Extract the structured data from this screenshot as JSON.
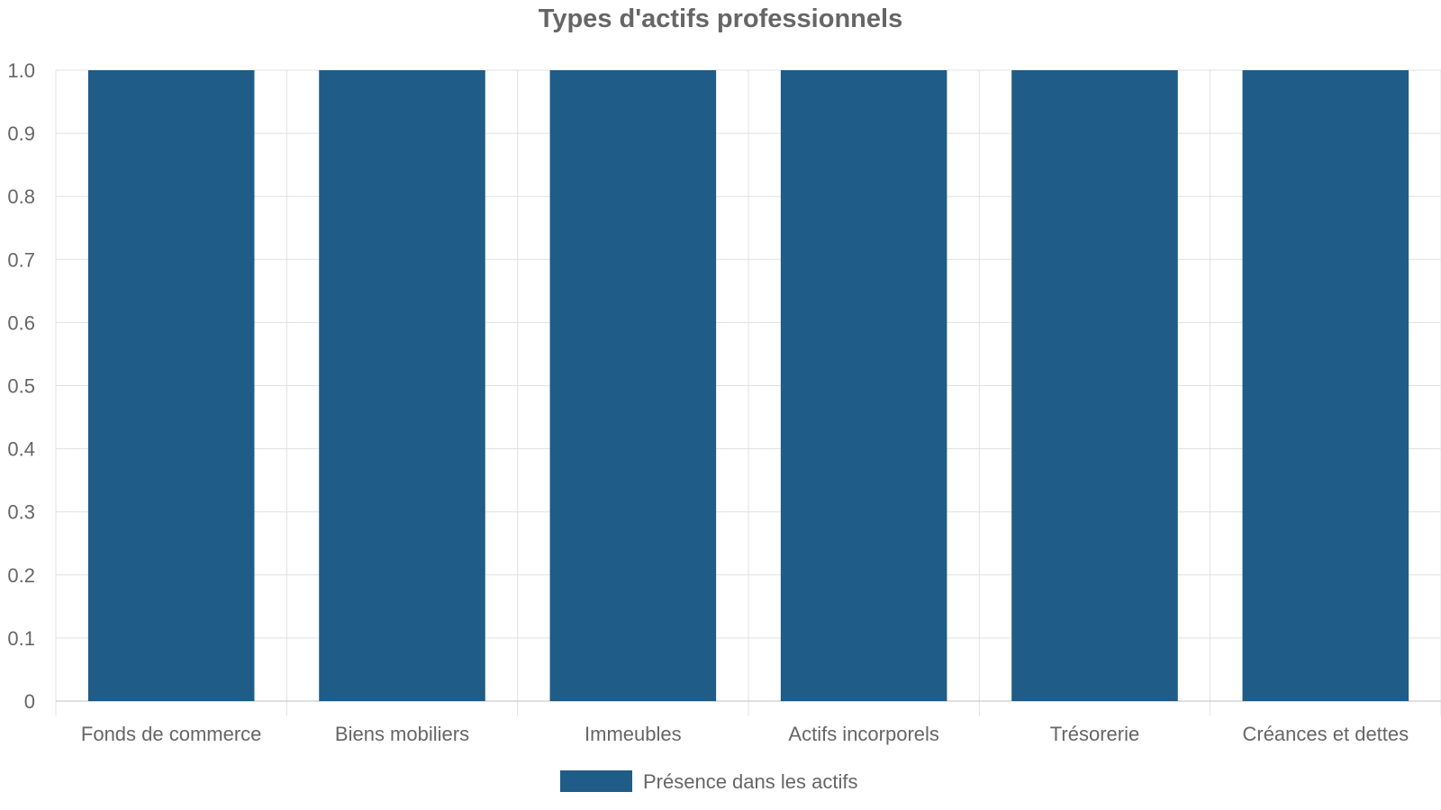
{
  "chart_data": {
    "type": "bar",
    "title": "Types d'actifs professionnels",
    "categories": [
      "Fonds de commerce",
      "Biens mobiliers",
      "Immeubles",
      "Actifs incorporels",
      "Trésorerie",
      "Créances et dettes"
    ],
    "series": [
      {
        "name": "Présence dans les actifs",
        "values": [
          1,
          1,
          1,
          1,
          1,
          1
        ],
        "color": "#1f5c87"
      }
    ],
    "ylim": [
      0,
      1
    ],
    "yticks": [
      "0",
      "0.1",
      "0.2",
      "0.3",
      "0.4",
      "0.5",
      "0.6",
      "0.7",
      "0.8",
      "0.9",
      "1.0"
    ],
    "grid": true,
    "legend_position": "bottom-center"
  }
}
